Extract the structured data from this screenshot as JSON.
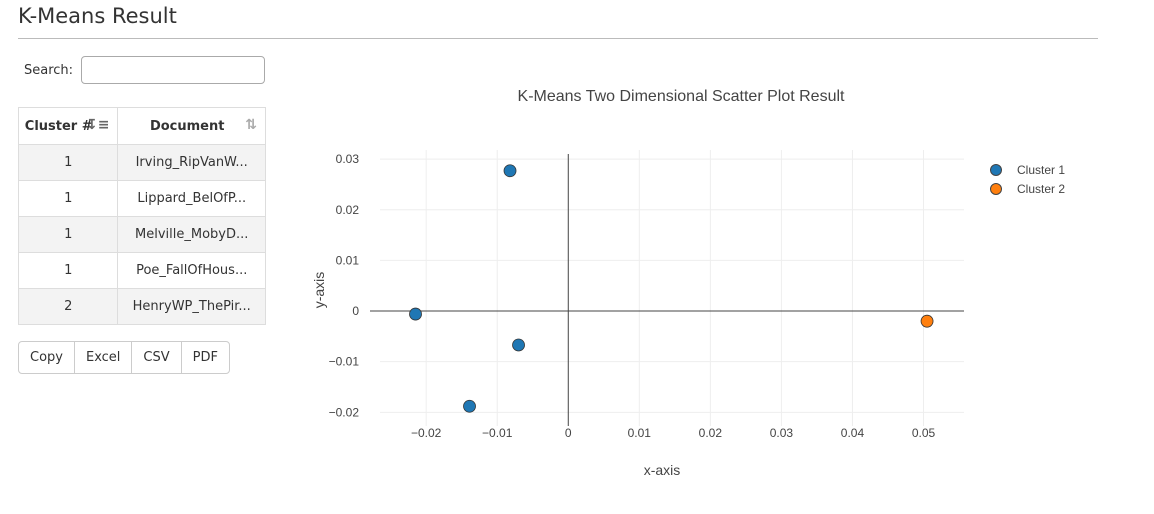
{
  "header": {
    "title": "K-Means Result"
  },
  "search": {
    "label": "Search:",
    "value": "",
    "placeholder": ""
  },
  "table": {
    "columns": [
      "Cluster #",
      "Document"
    ],
    "rows": [
      {
        "cluster": "1",
        "document": "Irving_RipVanW..."
      },
      {
        "cluster": "1",
        "document": "Lippard_BelOfP..."
      },
      {
        "cluster": "1",
        "document": "Melville_MobyD..."
      },
      {
        "cluster": "1",
        "document": "Poe_FallOfHous..."
      },
      {
        "cluster": "2",
        "document": "HenryWP_ThePir..."
      }
    ],
    "sort_icons": {
      "cluster": "sort-amount-down-icon",
      "document": "sort-icon"
    }
  },
  "buttons": {
    "copy": "Copy",
    "excel": "Excel",
    "csv": "CSV",
    "pdf": "PDF"
  },
  "chart_data": {
    "type": "scatter",
    "title": "K-Means Two Dimensional Scatter Plot Result",
    "xlabel": "x-axis",
    "ylabel": "y-axis",
    "xlim": [
      -0.0265,
      0.0557
    ],
    "ylim": [
      -0.0227,
      0.0318
    ],
    "xticks": [
      -0.02,
      -0.01,
      0,
      0.01,
      0.02,
      0.03,
      0.04,
      0.05
    ],
    "xtick_labels": [
      "−0.02",
      "−0.01",
      "0",
      "0.01",
      "0.02",
      "0.03",
      "0.04",
      "0.05"
    ],
    "yticks": [
      -0.02,
      -0.01,
      0,
      0.01,
      0.02,
      0.03
    ],
    "ytick_labels": [
      "−0.02",
      "−0.01",
      "0",
      "0.01",
      "0.02",
      "0.03"
    ],
    "grid": true,
    "legend": "top-right",
    "series": [
      {
        "name": "Cluster 1",
        "color": "#1f77b4",
        "x": [
          -0.0082,
          -0.0215,
          -0.007,
          -0.0139
        ],
        "y": [
          0.0277,
          -0.0006,
          -0.0067,
          -0.0188
        ]
      },
      {
        "name": "Cluster 2",
        "color": "#ff7f0e",
        "x": [
          0.0505
        ],
        "y": [
          -0.002
        ]
      }
    ]
  }
}
